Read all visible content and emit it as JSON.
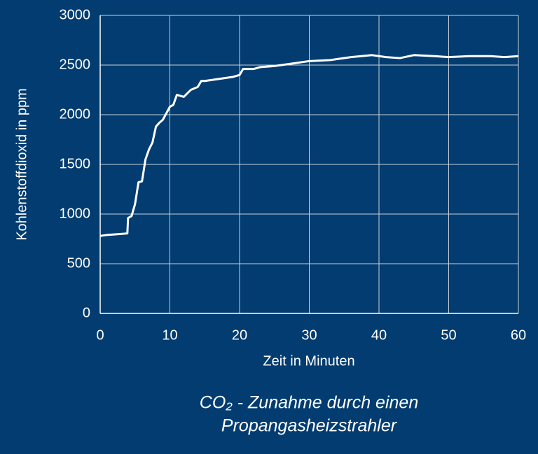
{
  "chart_data": {
    "type": "line",
    "title_lines": [
      "CO₂ - Zunahme durch einen",
      "Propangasheizstrahler"
    ],
    "x_label": "Zeit in Minuten",
    "y_label": "Kohlenstoffdioxid in ppm",
    "x": [
      0,
      1,
      2,
      3,
      3.9,
      4,
      4.5,
      5,
      5.5,
      6,
      6.5,
      7,
      7.5,
      8,
      8.5,
      9,
      10,
      10.5,
      11,
      12,
      13,
      14,
      14.5,
      15,
      17,
      19,
      20,
      20.5,
      22,
      23,
      25,
      27,
      30,
      33,
      36,
      39,
      41,
      43,
      45,
      48,
      50,
      53,
      56,
      58,
      60
    ],
    "series": [
      {
        "color": "#ffffff",
        "values": [
          780,
          790,
          795,
          800,
          805,
          960,
          980,
          1100,
          1320,
          1330,
          1550,
          1650,
          1720,
          1880,
          1920,
          1950,
          2080,
          2100,
          2200,
          2180,
          2250,
          2280,
          2340,
          2340,
          2360,
          2380,
          2400,
          2460,
          2460,
          2480,
          2490,
          2510,
          2540,
          2550,
          2580,
          2600,
          2580,
          2570,
          2600,
          2590,
          2580,
          2590,
          2590,
          2580,
          2590
        ]
      }
    ],
    "xlim": [
      0,
      60
    ],
    "xticks": [
      0,
      10,
      20,
      30,
      40,
      50,
      60
    ],
    "ylim": [
      0,
      3000
    ],
    "yticks": [
      0,
      500,
      1000,
      1500,
      2000,
      2500,
      3000
    ],
    "grid": true
  }
}
